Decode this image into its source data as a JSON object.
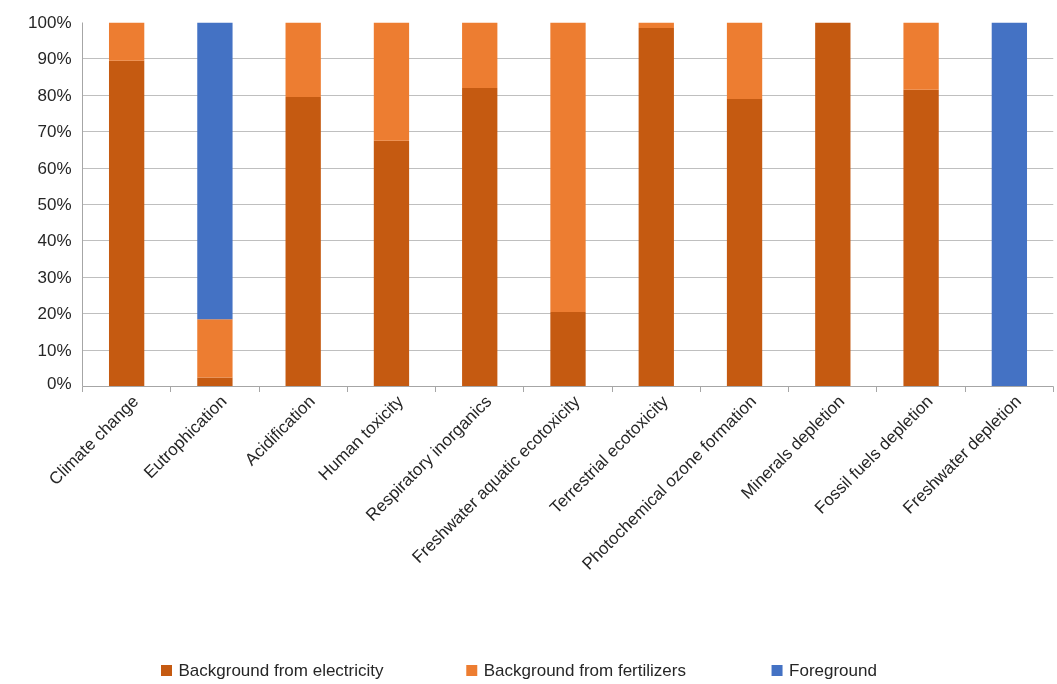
{
  "chart_data": {
    "type": "bar",
    "stacked": true,
    "categories": [
      "Climate change",
      "Eutrophication",
      "Acidification",
      "Human toxicity",
      "Respiratory inorganics",
      "Freshwater aquatic ecotoxicity",
      "Terrestrial ecotoxicity",
      "Photochemical ozone formation",
      "Minerals depletion",
      "Fossil fuels depletion",
      "Freshwater depletion"
    ],
    "series": [
      {
        "name": "Background from electricity",
        "color": "#c55a11",
        "values": [
          89.5,
          2.5,
          79.5,
          67.5,
          82,
          20.5,
          98.5,
          79,
          100,
          81.5,
          0
        ]
      },
      {
        "name": "Background from fertilizers",
        "color": "#ed7d31",
        "values": [
          10.5,
          16,
          20.5,
          32.5,
          18,
          79.5,
          1.5,
          21,
          0,
          18.5,
          0
        ]
      },
      {
        "name": "Foreground",
        "color": "#4472c4",
        "values": [
          0,
          81.5,
          0,
          0,
          0,
          0,
          0,
          0,
          0,
          0,
          100
        ]
      }
    ],
    "ylim": [
      0,
      100
    ],
    "yticks": [
      {
        "value": 0,
        "label": "0%"
      },
      {
        "value": 10,
        "label": "10%"
      },
      {
        "value": 20,
        "label": "20%"
      },
      {
        "value": 30,
        "label": "30%"
      },
      {
        "value": 40,
        "label": "40%"
      },
      {
        "value": 50,
        "label": "50%"
      },
      {
        "value": 60,
        "label": "60%"
      },
      {
        "value": 70,
        "label": "70%"
      },
      {
        "value": 80,
        "label": "80%"
      },
      {
        "value": 90,
        "label": "90%"
      },
      {
        "value": 100,
        "label": "100%"
      }
    ],
    "grid": "y",
    "legend": "bottom"
  }
}
